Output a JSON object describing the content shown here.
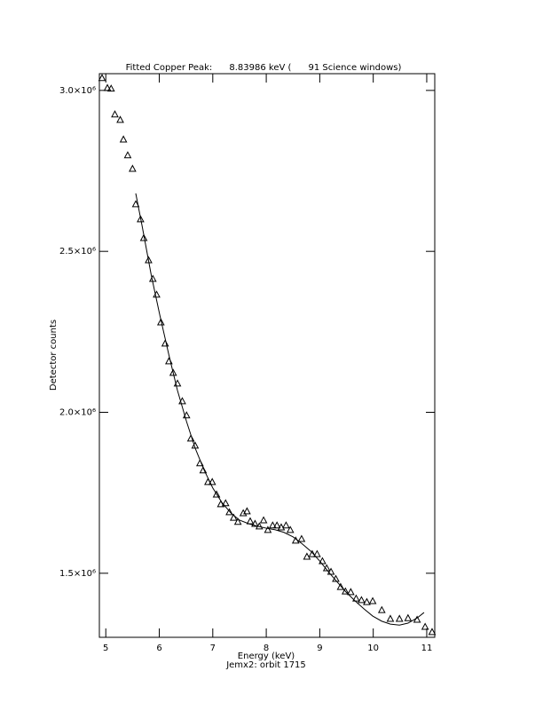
{
  "chart_data": {
    "type": "scatter",
    "title": "Fitted Copper Peak:      8.83986 keV (      91 Science windows)",
    "xlabel": "Energy (keV)",
    "ylabel": "Detector counts",
    "footnote": "Jemx2: orbit 1715",
    "xlim": [
      4.88,
      11.15
    ],
    "ylim": [
      1301000,
      3052000
    ],
    "xticks": [
      5,
      6,
      7,
      8,
      9,
      10,
      11
    ],
    "yticks": [
      {
        "value": 1500000,
        "label": "1.5×10⁶"
      },
      {
        "value": 2000000,
        "label": "2.0×10⁶"
      },
      {
        "value": 2500000,
        "label": "2.5×10⁶"
      },
      {
        "value": 3000000,
        "label": "3.0×10⁶"
      }
    ],
    "series": [
      {
        "type": "scatter",
        "marker": "triangle",
        "color": "#000000",
        "x": [
          4.93,
          5.03,
          5.1,
          5.17,
          5.27,
          5.33,
          5.41,
          5.5,
          5.56,
          5.65,
          5.71,
          5.8,
          5.88,
          5.95,
          6.03,
          6.11,
          6.18,
          6.26,
          6.34,
          6.43,
          6.51,
          6.59,
          6.67,
          6.76,
          6.82,
          6.91,
          6.99,
          7.07,
          7.15,
          7.24,
          7.31,
          7.39,
          7.47,
          7.57,
          7.64,
          7.7,
          7.79,
          7.87,
          7.95,
          8.03,
          8.12,
          8.2,
          8.28,
          8.37,
          8.45,
          8.55,
          8.66,
          8.76,
          8.86,
          8.95,
          9.05,
          9.13,
          9.21,
          9.3,
          9.39,
          9.48,
          9.58,
          9.68,
          9.78,
          9.88,
          9.99,
          10.16,
          10.32,
          10.49,
          10.65,
          10.82,
          10.97,
          11.1
        ],
        "values": [
          3039000,
          3008000,
          3006000,
          2926000,
          2909000,
          2848000,
          2799000,
          2757000,
          2647000,
          2600000,
          2542000,
          2473000,
          2415000,
          2366000,
          2280000,
          2214000,
          2159000,
          2123000,
          2090000,
          2035000,
          1991000,
          1919000,
          1897000,
          1842000,
          1820000,
          1784000,
          1784000,
          1745000,
          1715000,
          1718000,
          1690000,
          1673000,
          1660000,
          1687000,
          1693000,
          1662000,
          1654000,
          1646000,
          1665000,
          1635000,
          1649000,
          1649000,
          1643000,
          1649000,
          1635000,
          1602000,
          1607000,
          1552000,
          1560000,
          1560000,
          1538000,
          1516000,
          1505000,
          1483000,
          1458000,
          1444000,
          1442000,
          1422000,
          1417000,
          1411000,
          1414000,
          1386000,
          1359000,
          1359000,
          1361000,
          1356000,
          1334000,
          1318000
        ]
      },
      {
        "type": "line",
        "color": "#000000",
        "x": [
          5.56,
          5.68,
          5.85,
          6.01,
          6.18,
          6.34,
          6.51,
          6.67,
          6.84,
          7.0,
          7.17,
          7.34,
          7.5,
          7.67,
          7.84,
          8.0,
          8.17,
          8.33,
          8.5,
          8.66,
          8.83,
          9.0,
          9.16,
          9.33,
          9.49,
          9.66,
          9.83,
          9.99,
          10.16,
          10.32,
          10.49,
          10.65,
          10.82,
          10.95
        ],
        "values": [
          2680000,
          2578000,
          2426000,
          2302000,
          2178000,
          2068000,
          1971000,
          1889000,
          1820000,
          1765000,
          1720000,
          1687000,
          1665000,
          1654000,
          1646000,
          1640000,
          1635000,
          1627000,
          1613000,
          1593000,
          1569000,
          1538000,
          1505000,
          1472000,
          1442000,
          1414000,
          1389000,
          1367000,
          1351000,
          1342000,
          1339000,
          1345000,
          1361000,
          1378000
        ]
      }
    ]
  }
}
